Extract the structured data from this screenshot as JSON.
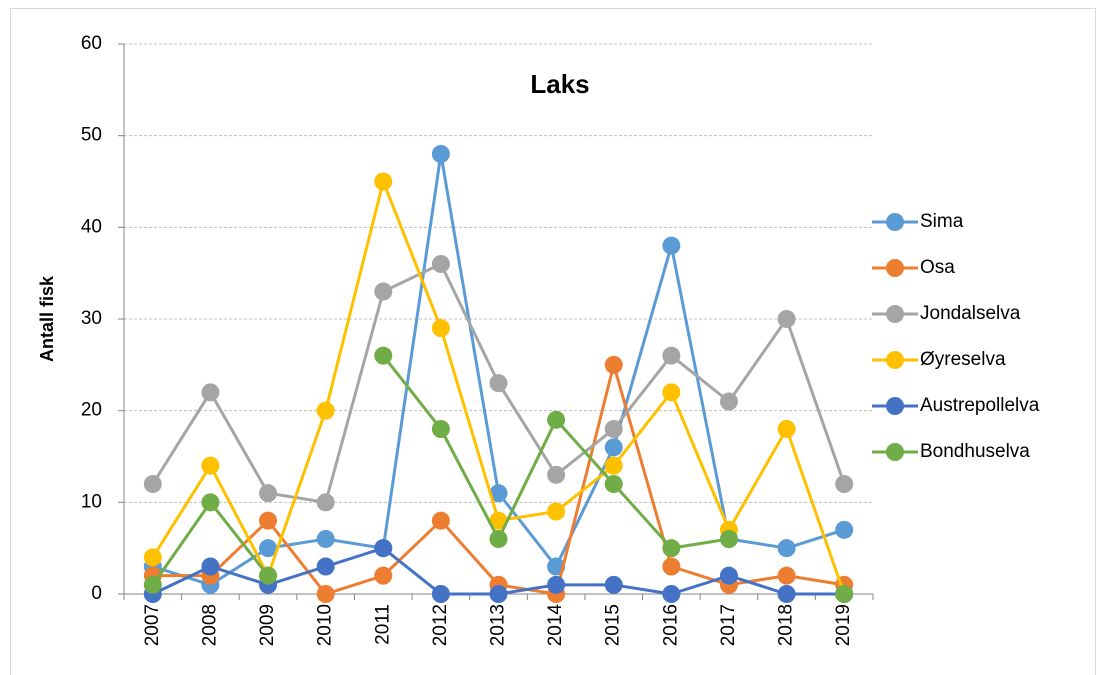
{
  "chart_data": {
    "type": "line",
    "title": "Laks",
    "y_label": "Antall fisk",
    "categories": [
      "2007",
      "2008",
      "2009",
      "2010",
      "2011",
      "2012",
      "2013",
      "2014",
      "2015",
      "2016",
      "2017",
      "2018",
      "2019"
    ],
    "series": [
      {
        "name": "Sima",
        "color": "#5b9bd5",
        "values": [
          3,
          1,
          5,
          6,
          5,
          48,
          11,
          3,
          16,
          38,
          6,
          5,
          7
        ]
      },
      {
        "name": "Osa",
        "color": "#ed7d31",
        "values": [
          2,
          2,
          8,
          0,
          2,
          8,
          1,
          0,
          25,
          3,
          1,
          2,
          1
        ]
      },
      {
        "name": "Jondalselva",
        "color": "#a5a5a5",
        "values": [
          12,
          22,
          11,
          10,
          33,
          36,
          23,
          13,
          18,
          26,
          21,
          30,
          12
        ]
      },
      {
        "name": "Øyreselva",
        "color": "#ffc000",
        "values": [
          4,
          14,
          2,
          20,
          45,
          29,
          8,
          9,
          14,
          22,
          7,
          18,
          0
        ]
      },
      {
        "name": "Austrepollelva",
        "color": "#4472c4",
        "values": [
          0,
          3,
          1,
          3,
          5,
          0,
          0,
          1,
          1,
          0,
          2,
          0,
          0
        ]
      },
      {
        "name": "Bondhuselva",
        "color": "#70ad47",
        "values": [
          1,
          10,
          2,
          null,
          26,
          18,
          6,
          19,
          12,
          5,
          6,
          null,
          0
        ]
      }
    ],
    "ylim": [
      0,
      60
    ],
    "yticks": [
      0,
      10,
      20,
      30,
      40,
      50,
      60
    ],
    "grid": true,
    "legend": "right"
  }
}
